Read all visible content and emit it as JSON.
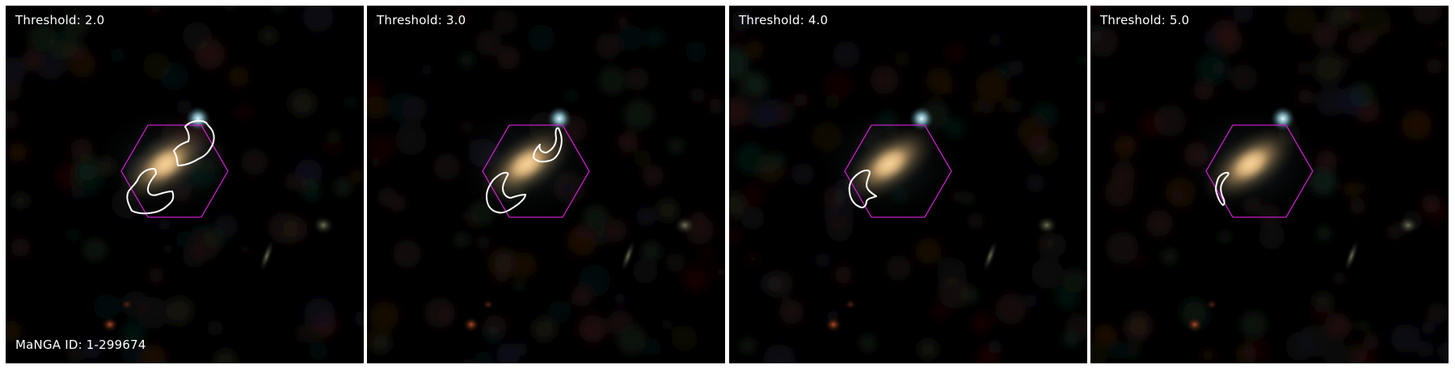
{
  "figure": {
    "galaxy_id_text": "MaNGA ID: 1-299674",
    "colors": {
      "hexagon": "#c81fc8",
      "contour": "#ffffff",
      "background": "#000000"
    },
    "panels": [
      {
        "threshold_label": "Threshold: 2.0"
      },
      {
        "threshold_label": "Threshold: 3.0"
      },
      {
        "threshold_label": "Threshold: 4.0"
      },
      {
        "threshold_label": "Threshold: 5.0"
      }
    ]
  }
}
